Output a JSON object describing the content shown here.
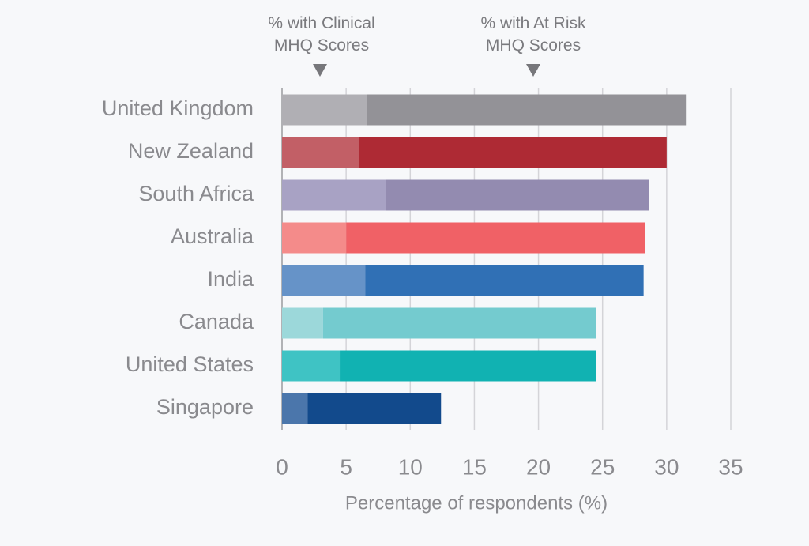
{
  "chart_data": {
    "type": "stacked-barh",
    "categories": [
      "United Kingdom",
      "New Zealand",
      "South Africa",
      "Australia",
      "India",
      "Canada",
      "United States",
      "Singapore"
    ],
    "series": [
      {
        "name": "% with Clinical MHQ Scores",
        "colors": [
          "#b0afb4",
          "#c25f66",
          "#a8a2c4",
          "#f48b8a",
          "#6693c8",
          "#9cd8da",
          "#3fc3c4",
          "#4b76ab"
        ],
        "values": [
          6.6,
          6.0,
          8.1,
          5.0,
          6.5,
          3.2,
          4.5,
          2.0
        ]
      },
      {
        "name": "% with At Risk MHQ Scores",
        "colors": [
          "#939297",
          "#ae2a34",
          "#938bb0",
          "#f06166",
          "#3070b5",
          "#74cbcf",
          "#11b2b2",
          "#124a8c"
        ],
        "values": [
          24.9,
          24.0,
          20.5,
          23.3,
          21.7,
          21.3,
          20.0,
          10.4
        ]
      }
    ],
    "x_label": "Percentage of respondents (%)",
    "xlim": [
      0,
      35
    ],
    "xticks": [
      0,
      5,
      10,
      15,
      20,
      25,
      30,
      35
    ],
    "grid": true
  }
}
